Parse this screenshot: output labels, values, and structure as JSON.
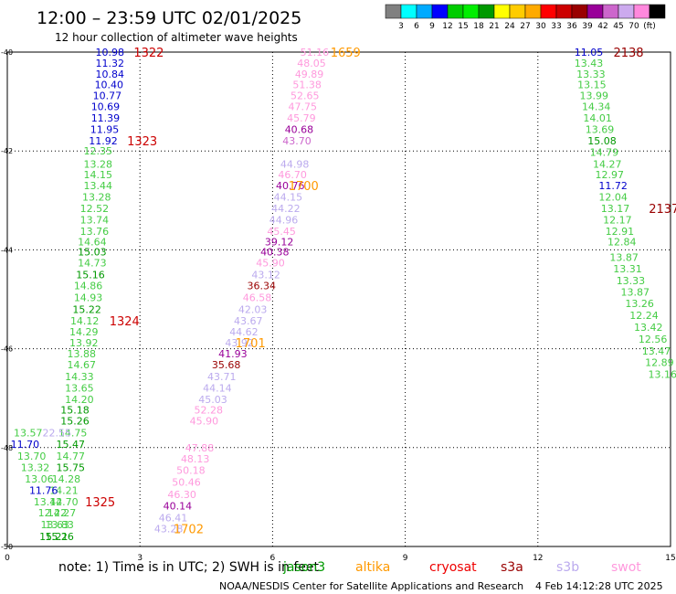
{
  "header": {
    "title": "12:00 – 23:59 UTC 02/01/2025",
    "subtitle": "12 hour collection of altimeter wave heights"
  },
  "colorbar": {
    "colors": [
      "#808080",
      "#00ffff",
      "#00aaff",
      "#0000ff",
      "#00cc00",
      "#00ee00",
      "#009900",
      "#ffff00",
      "#ffcc00",
      "#ffaa00",
      "#ff0000",
      "#cc0000",
      "#990000",
      "#990099",
      "#cc66cc",
      "#ccaaee",
      "#ff88dd",
      "#000000"
    ],
    "labels": [
      "3",
      "6",
      "9",
      "12",
      "15",
      "18",
      "21",
      "24",
      "27",
      "30",
      "33",
      "36",
      "39",
      "42",
      "45",
      "70",
      "(ft)"
    ]
  },
  "footer": {
    "note": "note:  1) Time is in UTC; 2) SWH is in feet",
    "credit": "NOAA/NESDIS Center for Satellite Applications and Research",
    "timestamp": "4 Feb 14:12:28 UTC 2025"
  },
  "chart_data": {
    "type": "scatter",
    "xlim": [
      0,
      15
    ],
    "ylim": [
      -50,
      -40
    ],
    "xticks": [
      "0",
      "3",
      "6",
      "9",
      "12",
      "15"
    ],
    "yticks": [
      "-40",
      "-42",
      "-44",
      "-46",
      "-48",
      "-50"
    ],
    "grid": true,
    "legend": [
      {
        "name": "jason3",
        "color": "#009900"
      },
      {
        "name": "altika",
        "color": "#ff9900"
      },
      {
        "name": "cryosat",
        "color": "#ee0000"
      },
      {
        "name": "s3a",
        "color": "#990000"
      },
      {
        "name": "s3b",
        "color": "#bbaaee"
      },
      {
        "name": "swot",
        "color": "#ff99dd"
      }
    ],
    "series": [
      {
        "values": [
          {
            "x": 2.32,
            "y": -40.0,
            "v": "10.98",
            "c": "#0000cc"
          },
          {
            "x": 2.32,
            "y": -40.22,
            "v": "11.32",
            "c": "#0000cc"
          },
          {
            "x": 2.32,
            "y": -40.44,
            "v": "10.84",
            "c": "#0000cc"
          },
          {
            "x": 2.3,
            "y": -40.66,
            "v": "10.40",
            "c": "#0000cc"
          },
          {
            "x": 2.26,
            "y": -40.88,
            "v": "10.77",
            "c": "#0000cc"
          },
          {
            "x": 2.22,
            "y": -41.1,
            "v": "10.69",
            "c": "#0000cc"
          },
          {
            "x": 2.22,
            "y": -41.33,
            "v": "11.39",
            "c": "#0000cc"
          },
          {
            "x": 2.2,
            "y": -41.56,
            "v": "11.95",
            "c": "#0000cc"
          },
          {
            "x": 2.17,
            "y": -41.79,
            "v": "11.92",
            "c": "#0000cc"
          },
          {
            "x": 2.05,
            "y": -42.0,
            "v": "12.35",
            "c": "#44cc44"
          },
          {
            "x": 2.05,
            "y": -42.26,
            "v": "13.28",
            "c": "#44cc44"
          },
          {
            "x": 2.05,
            "y": -42.48,
            "v": "14.15",
            "c": "#44cc44"
          },
          {
            "x": 2.05,
            "y": -42.7,
            "v": "13.44",
            "c": "#44cc44"
          },
          {
            "x": 2.02,
            "y": -42.93,
            "v": "13.28",
            "c": "#44cc44"
          },
          {
            "x": 1.97,
            "y": -43.16,
            "v": "12.52",
            "c": "#44cc44"
          },
          {
            "x": 1.97,
            "y": -43.39,
            "v": "13.74",
            "c": "#44cc44"
          },
          {
            "x": 1.97,
            "y": -43.62,
            "v": "13.76",
            "c": "#44cc44"
          },
          {
            "x": 1.92,
            "y": -43.84,
            "v": "14.64",
            "c": "#44cc44"
          },
          {
            "x": 1.92,
            "y": -44.04,
            "v": "15.03",
            "c": "#009900"
          },
          {
            "x": 1.92,
            "y": -44.26,
            "v": "14.73",
            "c": "#44cc44"
          },
          {
            "x": 1.88,
            "y": -44.5,
            "v": "15.16",
            "c": "#009900"
          },
          {
            "x": 1.83,
            "y": -44.72,
            "v": "14.86",
            "c": "#44cc44"
          },
          {
            "x": 1.83,
            "y": -44.96,
            "v": "14.93",
            "c": "#44cc44"
          },
          {
            "x": 1.8,
            "y": -45.2,
            "v": "15.22",
            "c": "#009900"
          },
          {
            "x": 1.75,
            "y": -45.43,
            "v": "14.12",
            "c": "#44cc44"
          },
          {
            "x": 1.73,
            "y": -45.66,
            "v": "14.29",
            "c": "#44cc44"
          },
          {
            "x": 1.73,
            "y": -45.88,
            "v": "13.92",
            "c": "#44cc44"
          },
          {
            "x": 1.68,
            "y": -46.1,
            "v": "13.88",
            "c": "#44cc44"
          },
          {
            "x": 1.68,
            "y": -46.32,
            "v": "14.67",
            "c": "#44cc44"
          },
          {
            "x": 1.63,
            "y": -46.56,
            "v": "14.33",
            "c": "#44cc44"
          },
          {
            "x": 1.63,
            "y": -46.79,
            "v": "13.65",
            "c": "#44cc44"
          },
          {
            "x": 1.63,
            "y": -47.02,
            "v": "14.20",
            "c": "#44cc44"
          },
          {
            "x": 1.53,
            "y": -47.24,
            "v": "15.18",
            "c": "#009900"
          },
          {
            "x": 1.53,
            "y": -47.46,
            "v": "15.26",
            "c": "#009900"
          },
          {
            "x": 1.48,
            "y": -47.7,
            "v": "14.75",
            "c": "#44cc44"
          },
          {
            "x": 1.43,
            "y": -47.93,
            "v": "15.47",
            "c": "#009900"
          },
          {
            "x": 1.43,
            "y": -48.17,
            "v": "14.77",
            "c": "#44cc44"
          },
          {
            "x": 1.43,
            "y": -48.4,
            "v": "15.75",
            "c": "#009900"
          },
          {
            "x": 1.33,
            "y": -48.63,
            "v": "14.28",
            "c": "#44cc44"
          },
          {
            "x": 1.28,
            "y": -48.86,
            "v": "14.21",
            "c": "#44cc44"
          },
          {
            "x": 1.28,
            "y": -49.09,
            "v": "14.70",
            "c": "#44cc44"
          },
          {
            "x": 1.23,
            "y": -49.32,
            "v": "14.27",
            "c": "#44cc44"
          },
          {
            "x": 1.18,
            "y": -49.56,
            "v": "13.83",
            "c": "#44cc44"
          },
          {
            "x": 1.18,
            "y": -49.8,
            "v": "15.26",
            "c": "#009900"
          }
        ]
      },
      {
        "values": [
          {
            "x": 0.47,
            "y": -47.7,
            "v": "13.57",
            "c": "#44cc44"
          },
          {
            "x": 1.12,
            "y": -47.7,
            "v": "22.55",
            "c": "#bbaaee"
          },
          {
            "x": 0.4,
            "y": -47.93,
            "v": "11.70",
            "c": "#0000cc"
          },
          {
            "x": 0.55,
            "y": -48.17,
            "v": "13.70",
            "c": "#44cc44"
          },
          {
            "x": 0.63,
            "y": -48.4,
            "v": "13.32",
            "c": "#44cc44"
          },
          {
            "x": 0.72,
            "y": -48.63,
            "v": "13.06",
            "c": "#44cc44"
          },
          {
            "x": 0.82,
            "y": -48.86,
            "v": "11.76",
            "c": "#0000cc"
          },
          {
            "x": 0.92,
            "y": -49.09,
            "v": "13.42",
            "c": "#44cc44"
          },
          {
            "x": 1.02,
            "y": -49.32,
            "v": "12.22",
            "c": "#44cc44"
          },
          {
            "x": 1.08,
            "y": -49.56,
            "v": "13.63",
            "c": "#44cc44"
          },
          {
            "x": 1.05,
            "y": -49.8,
            "v": "15.21",
            "c": "#009900"
          }
        ]
      },
      {
        "values": [
          {
            "x": 6.95,
            "y": -40.0,
            "v": "51.16",
            "c": "#ff99dd"
          },
          {
            "x": 6.88,
            "y": -40.22,
            "v": "48.05",
            "c": "#ff99dd"
          },
          {
            "x": 6.83,
            "y": -40.44,
            "v": "49.89",
            "c": "#ff99dd"
          },
          {
            "x": 6.78,
            "y": -40.66,
            "v": "51.38",
            "c": "#ff99dd"
          },
          {
            "x": 6.73,
            "y": -40.88,
            "v": "52.65",
            "c": "#ff99dd"
          },
          {
            "x": 6.68,
            "y": -41.1,
            "v": "47.75",
            "c": "#ff99dd"
          },
          {
            "x": 6.65,
            "y": -41.33,
            "v": "45.79",
            "c": "#ff99dd"
          },
          {
            "x": 6.6,
            "y": -41.56,
            "v": "40.68",
            "c": "#990099"
          },
          {
            "x": 6.55,
            "y": -41.79,
            "v": "43.70",
            "c": "#cc66cc"
          },
          {
            "x": 6.5,
            "y": -42.26,
            "v": "44.98",
            "c": "#bbaaee"
          },
          {
            "x": 6.45,
            "y": -42.48,
            "v": "46.70",
            "c": "#ff99dd"
          },
          {
            "x": 6.4,
            "y": -42.7,
            "v": "40.76",
            "c": "#990099"
          },
          {
            "x": 6.35,
            "y": -42.93,
            "v": "44.15",
            "c": "#bbaaee"
          },
          {
            "x": 6.3,
            "y": -43.16,
            "v": "44.22",
            "c": "#bbaaee"
          },
          {
            "x": 6.25,
            "y": -43.39,
            "v": "44.96",
            "c": "#bbaaee"
          },
          {
            "x": 6.2,
            "y": -43.62,
            "v": "45.45",
            "c": "#ff99dd"
          },
          {
            "x": 6.15,
            "y": -43.84,
            "v": "39.12",
            "c": "#990099"
          },
          {
            "x": 6.05,
            "y": -44.04,
            "v": "40.38",
            "c": "#990099"
          },
          {
            "x": 5.95,
            "y": -44.26,
            "v": "45.90",
            "c": "#ff99dd"
          },
          {
            "x": 5.85,
            "y": -44.5,
            "v": "43.12",
            "c": "#bbaaee"
          },
          {
            "x": 5.75,
            "y": -44.72,
            "v": "36.34",
            "c": "#990000"
          },
          {
            "x": 5.65,
            "y": -44.96,
            "v": "46.58",
            "c": "#ff99dd"
          },
          {
            "x": 5.55,
            "y": -45.2,
            "v": "42.03",
            "c": "#bbaaee"
          },
          {
            "x": 5.45,
            "y": -45.43,
            "v": "43.67",
            "c": "#bbaaee"
          },
          {
            "x": 5.35,
            "y": -45.66,
            "v": "44.62",
            "c": "#bbaaee"
          },
          {
            "x": 5.25,
            "y": -45.88,
            "v": "43.92",
            "c": "#bbaaee"
          },
          {
            "x": 5.1,
            "y": -46.1,
            "v": "41.93",
            "c": "#990099"
          },
          {
            "x": 4.95,
            "y": -46.32,
            "v": "35.68",
            "c": "#990000"
          },
          {
            "x": 4.85,
            "y": -46.56,
            "v": "43.71",
            "c": "#bbaaee"
          },
          {
            "x": 4.75,
            "y": -46.79,
            "v": "44.14",
            "c": "#bbaaee"
          },
          {
            "x": 4.65,
            "y": -47.02,
            "v": "45.03",
            "c": "#bbaaee"
          },
          {
            "x": 4.55,
            "y": -47.24,
            "v": "52.28",
            "c": "#ff99dd"
          },
          {
            "x": 4.45,
            "y": -47.46,
            "v": "45.90",
            "c": "#ff99dd"
          },
          {
            "x": 4.35,
            "y": -48.0,
            "v": "47.88",
            "c": "#ff99dd"
          },
          {
            "x": 4.25,
            "y": -48.23,
            "v": "48.13",
            "c": "#ff99dd"
          },
          {
            "x": 4.15,
            "y": -48.46,
            "v": "50.18",
            "c": "#ff99dd"
          },
          {
            "x": 4.05,
            "y": -48.7,
            "v": "50.46",
            "c": "#ff99dd"
          },
          {
            "x": 3.95,
            "y": -48.95,
            "v": "46.30",
            "c": "#ff99dd"
          },
          {
            "x": 3.85,
            "y": -49.18,
            "v": "40.14",
            "c": "#990099"
          },
          {
            "x": 3.75,
            "y": -49.42,
            "v": "46.41",
            "c": "#bbaaee"
          },
          {
            "x": 3.65,
            "y": -49.64,
            "v": "43.28",
            "c": "#bbaaee"
          }
        ]
      },
      {
        "values": [
          {
            "x": 13.15,
            "y": -40.0,
            "v": "11.05",
            "c": "#0000cc"
          },
          {
            "x": 13.15,
            "y": -40.22,
            "v": "13.43",
            "c": "#44cc44"
          },
          {
            "x": 13.2,
            "y": -40.44,
            "v": "13.33",
            "c": "#44cc44"
          },
          {
            "x": 13.22,
            "y": -40.66,
            "v": "13.15",
            "c": "#44cc44"
          },
          {
            "x": 13.27,
            "y": -40.88,
            "v": "13.99",
            "c": "#44cc44"
          },
          {
            "x": 13.32,
            "y": -41.1,
            "v": "14.34",
            "c": "#44cc44"
          },
          {
            "x": 13.35,
            "y": -41.33,
            "v": "14.01",
            "c": "#44cc44"
          },
          {
            "x": 13.4,
            "y": -41.56,
            "v": "13.69",
            "c": "#44cc44"
          },
          {
            "x": 13.45,
            "y": -41.79,
            "v": "15.08",
            "c": "#009900"
          },
          {
            "x": 13.5,
            "y": -42.02,
            "v": "14.79",
            "c": "#44cc44"
          },
          {
            "x": 13.57,
            "y": -42.26,
            "v": "14.27",
            "c": "#44cc44"
          },
          {
            "x": 13.62,
            "y": -42.48,
            "v": "12.97",
            "c": "#44cc44"
          },
          {
            "x": 13.7,
            "y": -42.7,
            "v": "11.72",
            "c": "#0000cc"
          },
          {
            "x": 13.7,
            "y": -42.93,
            "v": "12.04",
            "c": "#44cc44"
          },
          {
            "x": 13.75,
            "y": -43.16,
            "v": "13.17",
            "c": "#44cc44"
          },
          {
            "x": 13.8,
            "y": -43.39,
            "v": "12.17",
            "c": "#44cc44"
          },
          {
            "x": 13.85,
            "y": -43.62,
            "v": "12.91",
            "c": "#44cc44"
          },
          {
            "x": 13.9,
            "y": -43.84,
            "v": "12.84",
            "c": "#44cc44"
          },
          {
            "x": 13.95,
            "y": -44.15,
            "v": "13.87",
            "c": "#44cc44"
          },
          {
            "x": 14.03,
            "y": -44.38,
            "v": "13.31",
            "c": "#44cc44"
          },
          {
            "x": 14.1,
            "y": -44.62,
            "v": "13.33",
            "c": "#44cc44"
          },
          {
            "x": 14.2,
            "y": -44.85,
            "v": "13.87",
            "c": "#44cc44"
          },
          {
            "x": 14.3,
            "y": -45.08,
            "v": "13.26",
            "c": "#44cc44"
          },
          {
            "x": 14.4,
            "y": -45.32,
            "v": "12.24",
            "c": "#44cc44"
          },
          {
            "x": 14.5,
            "y": -45.56,
            "v": "13.42",
            "c": "#44cc44"
          },
          {
            "x": 14.6,
            "y": -45.8,
            "v": "12.56",
            "c": "#44cc44"
          },
          {
            "x": 14.68,
            "y": -46.04,
            "v": "13.47",
            "c": "#44cc44"
          },
          {
            "x": 14.75,
            "y": -46.28,
            "v": "12.89",
            "c": "#44cc44"
          },
          {
            "x": 14.82,
            "y": -46.52,
            "v": "13.16",
            "c": "#44cc44"
          }
        ]
      }
    ],
    "pass_labels": [
      {
        "x": 3.2,
        "y": -40.0,
        "v": "1322",
        "c": "#cc0000"
      },
      {
        "x": 3.05,
        "y": -41.79,
        "v": "1323",
        "c": "#cc0000"
      },
      {
        "x": 2.65,
        "y": -45.43,
        "v": "1324",
        "c": "#cc0000"
      },
      {
        "x": 2.1,
        "y": -49.09,
        "v": "1325",
        "c": "#cc0000"
      },
      {
        "x": 7.65,
        "y": -40.0,
        "v": "1659",
        "c": "#ff9900"
      },
      {
        "x": 6.7,
        "y": -42.7,
        "v": "1700",
        "c": "#ff9900"
      },
      {
        "x": 5.5,
        "y": -45.88,
        "v": "1701",
        "c": "#ff9900"
      },
      {
        "x": 4.1,
        "y": -49.64,
        "v": "1702",
        "c": "#ff9900"
      },
      {
        "x": 14.05,
        "y": -40.0,
        "v": "2138",
        "c": "#990000"
      },
      {
        "x": 14.85,
        "y": -43.16,
        "v": "2137",
        "c": "#990000"
      }
    ]
  }
}
